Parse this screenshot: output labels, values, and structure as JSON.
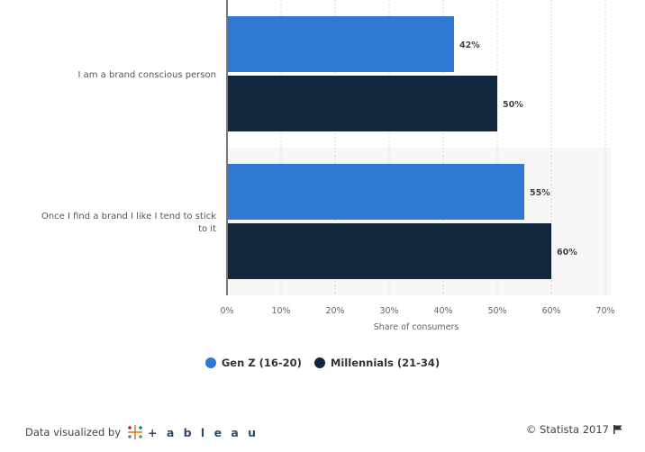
{
  "chart_data": {
    "type": "bar",
    "orientation": "horizontal",
    "categories": [
      "I am a brand conscious person",
      "Once I find a brand I like I tend to stick to it"
    ],
    "series": [
      {
        "name": "Gen Z (16-20)",
        "values": [
          42,
          55
        ],
        "color": "#2f78d3"
      },
      {
        "name": "Millennials (21-34)",
        "values": [
          50,
          60
        ],
        "color": "#12263d"
      }
    ],
    "xlabel": "Share of consumers",
    "xlim": [
      0,
      70
    ],
    "ticks": [
      "0%",
      "10%",
      "20%",
      "30%",
      "40%",
      "50%",
      "60%",
      "70%"
    ],
    "data_labels": [
      [
        "42%",
        "55%"
      ],
      [
        "50%",
        "60%"
      ]
    ],
    "grid": true,
    "legend_position": "bottom"
  },
  "legend": {
    "items": [
      {
        "label": "Gen Z (16-20)",
        "color": "#2f78d3"
      },
      {
        "label": "Millennials (21-34)",
        "color": "#12263d"
      }
    ]
  },
  "footer": {
    "credit_prefix": "Data visualized by",
    "tableau_word": "+ a b l e a u",
    "copyright": "© Statista 2017"
  },
  "icons": {
    "tableau_logo": "tableau-cross-icon",
    "flag": "flag-icon"
  }
}
